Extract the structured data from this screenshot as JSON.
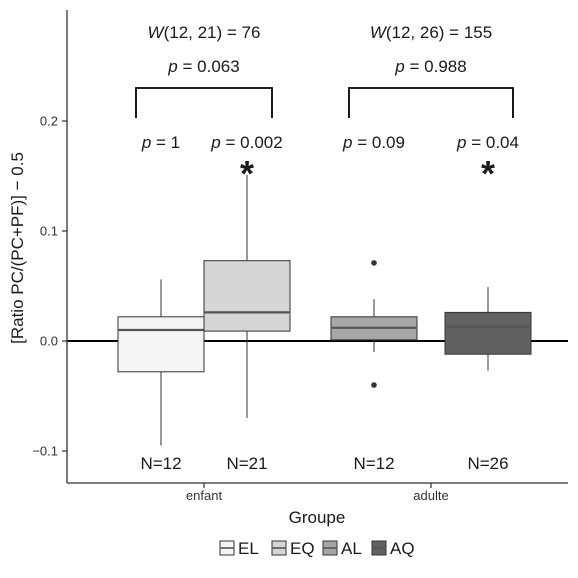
{
  "chart_data": {
    "type": "boxplot",
    "xlabel": "Groupe",
    "ylabel": "[Ratio PC/(PC+PF)] − 0.5",
    "ylim": [
      -0.13,
      0.3
    ],
    "yticks": [
      "0.2",
      "0.1",
      "0.0",
      "−0.1"
    ],
    "ytick_values": [
      0.2,
      0.1,
      0.0,
      -0.1
    ],
    "reference_line_y": 0.0,
    "groups": [
      {
        "label": "enfant",
        "test": {
          "W_letter": "W",
          "W_args": "(12, 21) = 76",
          "p_letter": "p",
          "p_value": " = 0.063"
        },
        "boxes": [
          {
            "key": "EL",
            "n_label": "N=12",
            "p_letter": "p",
            "p_value": " = 1",
            "star": "",
            "color": "#f5f5f5",
            "whisker_low": -0.095,
            "q1": -0.028,
            "median": 0.01,
            "q3": 0.022,
            "whisker_high": 0.056,
            "outliers": []
          },
          {
            "key": "EQ",
            "n_label": "N=21",
            "p_letter": "p",
            "p_value": " = 0.002",
            "star": "*",
            "color": "#d6d6d6",
            "whisker_low": -0.07,
            "q1": 0.009,
            "median": 0.026,
            "q3": 0.073,
            "whisker_high": 0.151,
            "outliers": []
          }
        ]
      },
      {
        "label": "adulte",
        "test": {
          "W_letter": "W",
          "W_args": "(12, 26) = 155",
          "p_letter": "p",
          "p_value": " = 0.988"
        },
        "boxes": [
          {
            "key": "AL",
            "n_label": "N=12",
            "p_letter": "p",
            "p_value": " = 0.09",
            "star": "",
            "color": "#a6a6a6",
            "whisker_low": -0.01,
            "q1": 0.001,
            "median": 0.012,
            "q3": 0.022,
            "whisker_high": 0.038,
            "outliers": [
              0.071,
              -0.04
            ]
          },
          {
            "key": "AQ",
            "n_label": "N=26",
            "p_letter": "p",
            "p_value": " = 0.04",
            "star": "*",
            "color": "#616161",
            "whisker_low": -0.027,
            "q1": -0.012,
            "median": 0.013,
            "q3": 0.026,
            "whisker_high": 0.049,
            "outliers": []
          }
        ]
      }
    ],
    "legend": {
      "placement": "bottom",
      "entries": [
        {
          "label": "EL",
          "color": "#f5f5f5"
        },
        {
          "label": "EQ",
          "color": "#d6d6d6"
        },
        {
          "label": "AL",
          "color": "#a6a6a6"
        },
        {
          "label": "AQ",
          "color": "#616161"
        }
      ]
    }
  }
}
